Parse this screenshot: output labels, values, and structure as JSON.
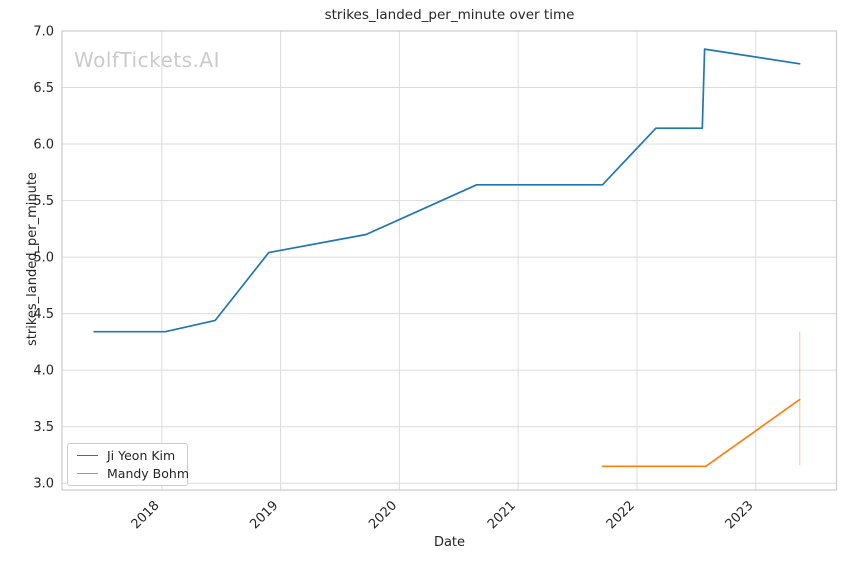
{
  "chart_data": {
    "type": "line",
    "title": "strikes_landed_per_minute over time",
    "xlabel": "Date",
    "ylabel": "strikes_landed_per_minute",
    "watermark": "WolfTickets.AI",
    "grid": true,
    "legend_position": "lower left",
    "xlim": [
      2017.16,
      2023.68
    ],
    "ylim": [
      2.94,
      7.0
    ],
    "x_ticks": [
      2018,
      2019,
      2020,
      2021,
      2022,
      2023
    ],
    "x_tick_labels": [
      "2018",
      "2019",
      "2020",
      "2021",
      "2022",
      "2023"
    ],
    "y_ticks": [
      3.0,
      3.5,
      4.0,
      4.5,
      5.0,
      5.5,
      6.0,
      6.5,
      7.0
    ],
    "y_tick_labels": [
      "3.0",
      "3.5",
      "4.0",
      "4.5",
      "5.0",
      "5.5",
      "6.0",
      "6.5",
      "7.0"
    ],
    "series": [
      {
        "name": "Ji Yeon Kim",
        "color": "#1f77b4",
        "points": [
          [
            2017.43,
            4.34
          ],
          [
            2018.03,
            4.34
          ],
          [
            2018.45,
            4.44
          ],
          [
            2018.9,
            5.04
          ],
          [
            2019.72,
            5.2
          ],
          [
            2020.65,
            5.64
          ],
          [
            2021.71,
            5.64
          ],
          [
            2022.16,
            6.14
          ],
          [
            2022.55,
            6.14
          ],
          [
            2022.57,
            6.84
          ],
          [
            2023.37,
            6.71
          ]
        ]
      },
      {
        "name": "Mandy Bohm",
        "color": "#ff7f0e",
        "points": [
          [
            2021.71,
            3.15
          ],
          [
            2022.58,
            3.15
          ],
          [
            2023.37,
            3.74
          ]
        ],
        "error_bar": {
          "x": 2023.37,
          "y_min": 3.16,
          "y_max": 4.34
        }
      }
    ],
    "colors": {
      "grid": "#dcdcdc",
      "spine": "#cccccc",
      "text": "#262626",
      "watermark": "#cbcbcb"
    }
  }
}
